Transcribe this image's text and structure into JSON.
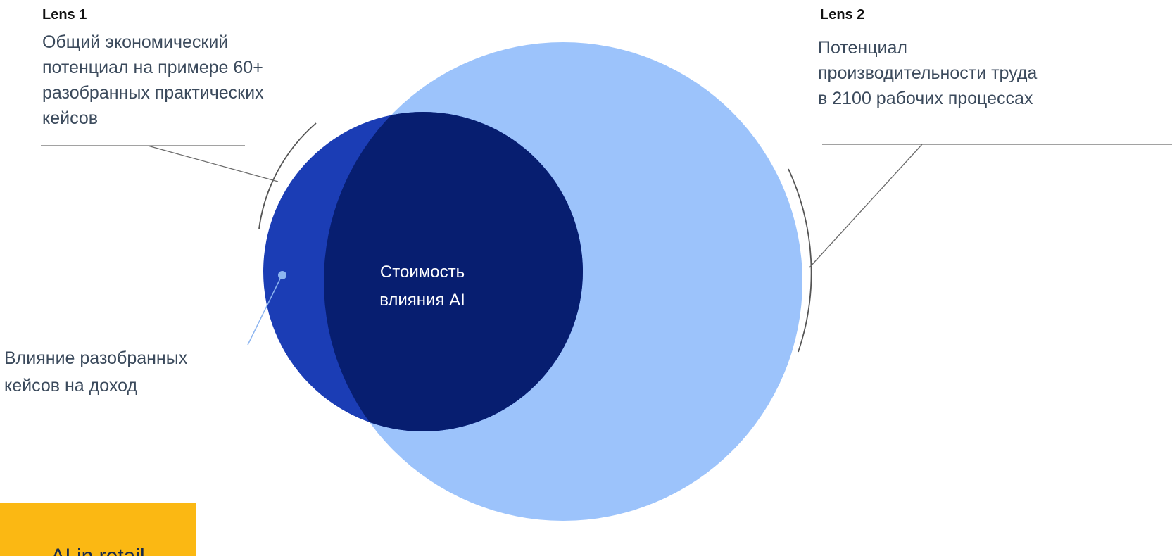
{
  "lens1": {
    "title": "Lens 1",
    "lines": [
      "Общий экономический",
      "потенциал на примере 60+",
      "разобранных практических",
      "кейсов"
    ]
  },
  "lens2": {
    "title": "Lens 2",
    "lines": [
      "Потенциал",
      "производительности труда",
      "в 2100 рабочих процессах"
    ]
  },
  "center": {
    "lines": [
      "Стоимость",
      "влияния AI"
    ]
  },
  "annotation": {
    "lines": [
      "Влияние разобранных",
      "кейсов на доход"
    ]
  },
  "badge": {
    "label": "AI in retail"
  }
}
